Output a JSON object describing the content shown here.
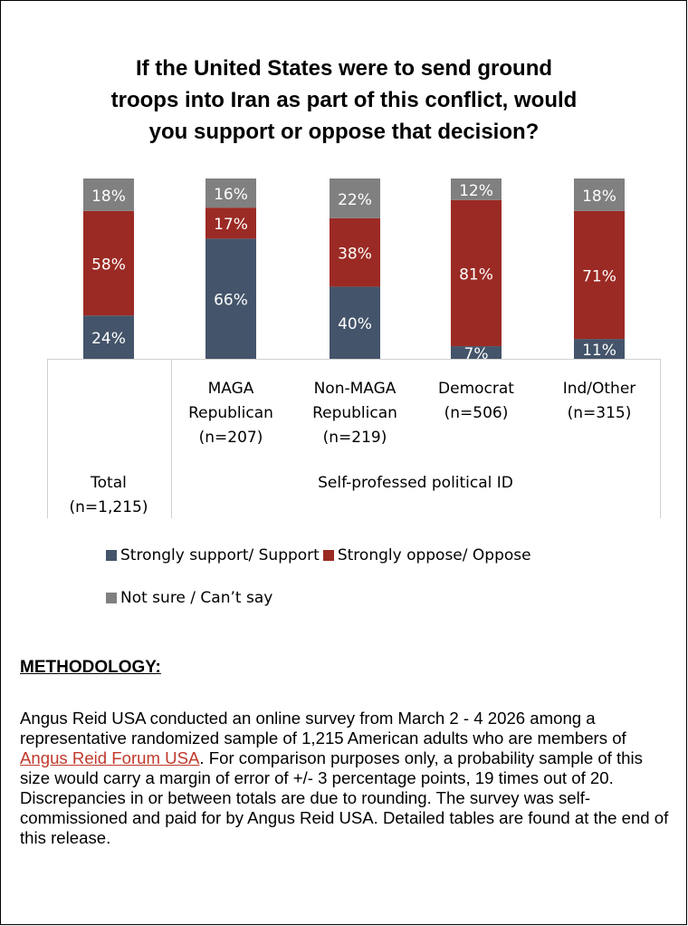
{
  "title_lines": [
    "If the United States were to send ground",
    "troops into Iran as part of this conflict, would",
    "you support or oppose that decision?"
  ],
  "colors": {
    "support": "#44546a",
    "oppose": "#9b2a24",
    "not_sure": "#808080"
  },
  "chart_data": {
    "type": "bar",
    "stacked": true,
    "title": "If the United States were to send ground troops into Iran as part of this conflict, would you support or oppose that decision?",
    "categories": [
      [
        "Total",
        "(n=1,215)"
      ],
      [
        "MAGA",
        "Republican",
        "(n=207)"
      ],
      [
        "Non-MAGA",
        "Republican",
        "(n=219)"
      ],
      [
        "Democrat",
        "(n=506)"
      ],
      [
        "Ind/Other",
        "(n=315)"
      ]
    ],
    "group_label": "Self-professed political ID",
    "series": [
      {
        "name": "Strongly support/ Support",
        "values": [
          24,
          66,
          40,
          7,
          11
        ]
      },
      {
        "name": "Strongly oppose/ Oppose",
        "values": [
          58,
          17,
          38,
          81,
          71
        ]
      },
      {
        "name": "Not sure / Can’t say",
        "values": [
          18,
          16,
          22,
          12,
          18
        ]
      }
    ],
    "ylim": [
      0,
      100
    ],
    "legend": "bottom"
  },
  "methodology": {
    "heading": "METHODOLOGY:",
    "text_before_link": "Angus Reid USA conducted an online survey from March 2 - 4 2026 among a representative randomized sample of 1,215 American adults who are members of ",
    "link_text": "Angus Reid Forum USA",
    "text_after_link": ". For comparison purposes only, a probability sample of this size would carry a margin of error of +/- 3 percentage points, 19 times out of 20. Discrepancies in or between totals are due to rounding. The survey was self-commissioned and paid for by Angus Reid USA. Detailed tables are found at the end of this release."
  }
}
